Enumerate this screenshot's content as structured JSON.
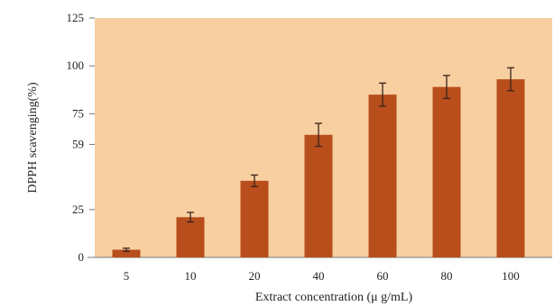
{
  "chart_data": {
    "type": "bar",
    "title": "",
    "xlabel": "Extract concentration (μ g/mL)",
    "ylabel": "DPPH scavenging(%)",
    "categories": [
      "5",
      "10",
      "20",
      "40",
      "60",
      "80",
      "100"
    ],
    "values": [
      4,
      21,
      40,
      64,
      85,
      89,
      93
    ],
    "errors": [
      0.8,
      2.5,
      3,
      6,
      6,
      6,
      6
    ],
    "ylim": [
      0,
      125
    ],
    "yticks": [
      0,
      25,
      59,
      75,
      100,
      125
    ],
    "ytick_labels": [
      "0",
      "25",
      "59",
      "75",
      "100",
      "125"
    ],
    "grid": false,
    "legend": "none",
    "colors": {
      "plot_background": "#f7cfa1",
      "bar": "#b84e1c",
      "error_bar": "#3a2418",
      "axis": "#777777"
    }
  }
}
